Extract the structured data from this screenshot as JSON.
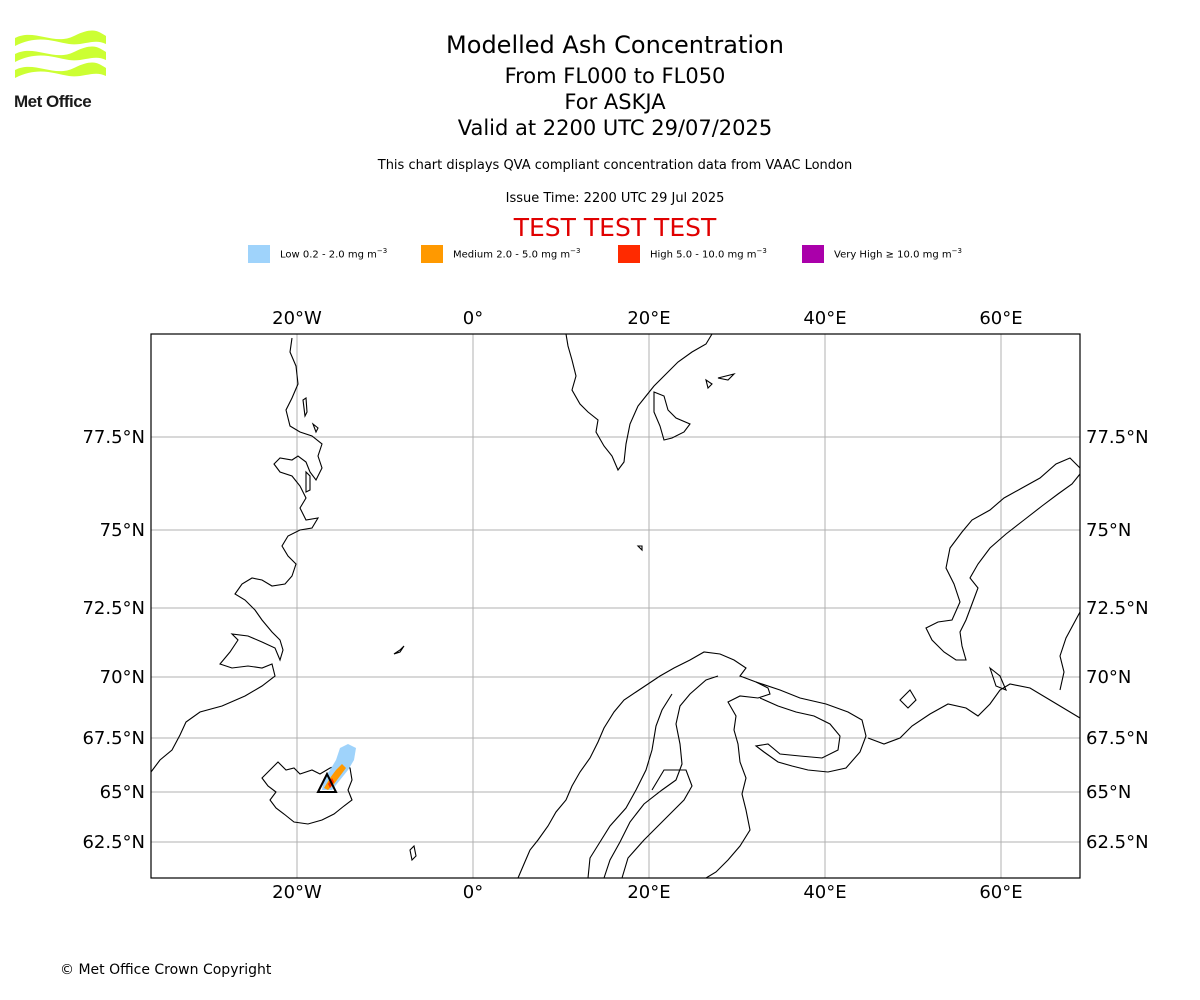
{
  "header": {
    "logo_text": "Met Office",
    "title": "Modelled Ash Concentration",
    "flight_levels": "From FL000 to FL050",
    "volcano": "For ASKJA",
    "valid_time": "Valid at 2200 UTC 29/07/2025",
    "compliance": "This chart displays QVA compliant concentration data from VAAC London",
    "issue_time": "Issue Time: 2200 UTC 29 Jul 2025",
    "test_banner": "TEST TEST TEST"
  },
  "legend": [
    {
      "name": "Low",
      "range": "0.2 - 2.0",
      "unit": "mg m",
      "exp": "−3",
      "color": "#9fd3fb"
    },
    {
      "name": "Medium",
      "range": "2.0 - 5.0",
      "unit": "mg m",
      "exp": "−3",
      "color": "#ff9900"
    },
    {
      "name": "High",
      "range": "5.0 - 10.0",
      "unit": "mg m",
      "exp": "−3",
      "color": "#ff2a00"
    },
    {
      "name": "Very High",
      "range": "≥ 10.0",
      "unit": "mg m",
      "exp": "−3",
      "color": "#aa00aa"
    }
  ],
  "map": {
    "longitude_ticks": [
      "20°W",
      "0°",
      "20°E",
      "40°E",
      "60°E"
    ],
    "latitude_ticks": [
      "77.5°N",
      "75°N",
      "72.5°N",
      "70°N",
      "67.5°N",
      "65°N",
      "62.5°N"
    ],
    "volcano_marker": "Askja"
  },
  "footer": {
    "copyright": "© Met Office Crown Copyright"
  },
  "colors": {
    "test_banner": "#e00000",
    "logo_green": "#ccff33",
    "grid": "#b0b0b0"
  }
}
